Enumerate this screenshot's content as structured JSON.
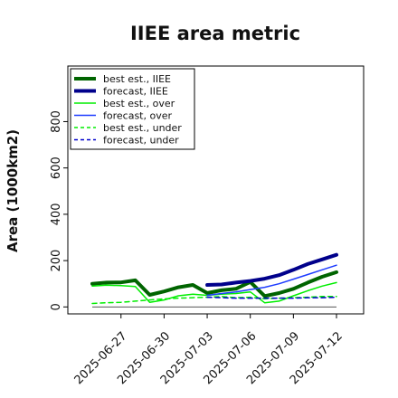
{
  "chart_data": {
    "type": "line",
    "title": "IIEE area metric",
    "xlabel": "",
    "ylabel": "Area (1000km2)",
    "x": [
      "2025-06-25",
      "2025-06-26",
      "2025-06-27",
      "2025-06-28",
      "2025-06-29",
      "2025-06-30",
      "2025-07-01",
      "2025-07-02",
      "2025-07-03",
      "2025-07-04",
      "2025-07-05",
      "2025-07-06",
      "2025-07-07",
      "2025-07-08",
      "2025-07-09",
      "2025-07-10",
      "2025-07-11",
      "2025-07-12"
    ],
    "x_ticks": [
      "2025-06-27",
      "2025-06-30",
      "2025-07-03",
      "2025-07-06",
      "2025-07-09",
      "2025-07-12"
    ],
    "highlight_tick": "2025-07-03",
    "highlight_color": "#228b22",
    "yticks": [
      0,
      200,
      400,
      600,
      800
    ],
    "ylim": [
      -30,
      1040
    ],
    "grid": false,
    "legend_position": "top-left",
    "reference_line": 0,
    "series": [
      {
        "name": "best est., IIEE",
        "color": "#006400",
        "style": "solid",
        "width": 4,
        "values": [
          100,
          105,
          106,
          115,
          52,
          67,
          85,
          95,
          60,
          72,
          78,
          108,
          47,
          60,
          78,
          105,
          130,
          150
        ]
      },
      {
        "name": "forecast, IIEE",
        "color": "#00008b",
        "style": "solid",
        "width": 4,
        "values": [
          null,
          null,
          null,
          null,
          null,
          null,
          null,
          null,
          95,
          97,
          105,
          112,
          122,
          137,
          160,
          185,
          205,
          225
        ]
      },
      {
        "name": "best est., over",
        "color": "#00ee00",
        "style": "solid",
        "width": 1.5,
        "values": [
          90,
          94,
          92,
          88,
          20,
          30,
          48,
          55,
          50,
          55,
          58,
          65,
          18,
          25,
          48,
          70,
          90,
          105
        ]
      },
      {
        "name": "forecast, over",
        "color": "#1e3cff",
        "style": "solid",
        "width": 1.5,
        "values": [
          null,
          null,
          null,
          null,
          null,
          null,
          null,
          null,
          50,
          58,
          65,
          75,
          85,
          100,
          120,
          140,
          160,
          180
        ]
      },
      {
        "name": "best est., under",
        "color": "#00ee00",
        "style": "dashed",
        "width": 1.5,
        "values": [
          15,
          18,
          20,
          25,
          30,
          35,
          38,
          40,
          42,
          45,
          40,
          42,
          35,
          38,
          40,
          42,
          45,
          45
        ]
      },
      {
        "name": "forecast, under",
        "color": "#0000cd",
        "style": "dashed",
        "width": 1.5,
        "values": [
          null,
          null,
          null,
          null,
          null,
          null,
          null,
          null,
          42,
          40,
          38,
          38,
          38,
          38,
          38,
          40,
          40,
          42
        ]
      }
    ]
  }
}
